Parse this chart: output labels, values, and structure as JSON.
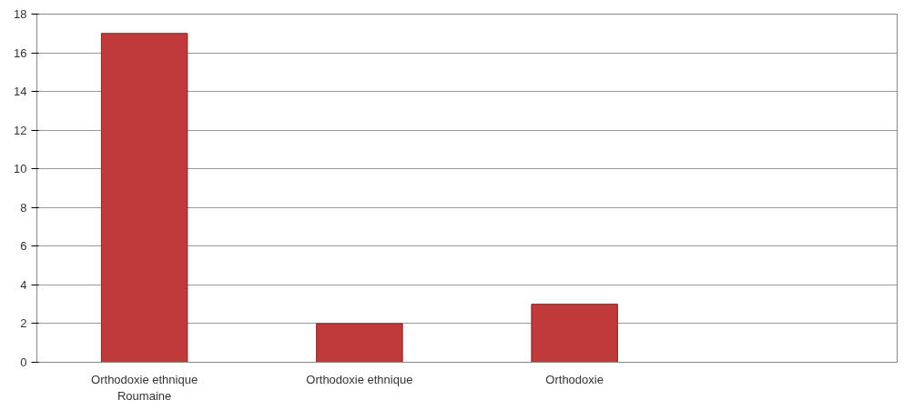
{
  "chart_data": {
    "type": "bar",
    "categories": [
      "Orthodoxie ethnique Roumaine",
      "Orthodoxie ethnique",
      "Orthodoxie",
      null
    ],
    "values": [
      17,
      2,
      3,
      null
    ],
    "color": "#c0393b",
    "ylim": [
      0,
      18
    ],
    "yticks": [
      0,
      2,
      4,
      6,
      8,
      10,
      12,
      14,
      16,
      18
    ],
    "grid": "y"
  }
}
